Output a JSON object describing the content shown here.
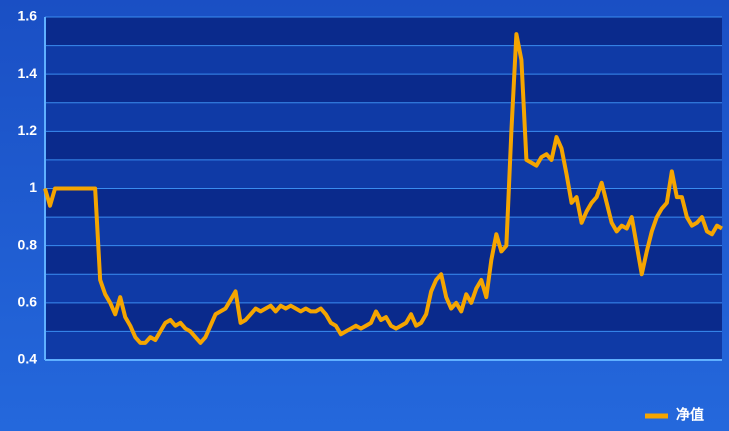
{
  "chart_data": {
    "type": "line",
    "series": [
      {
        "name": "净值",
        "color": "#f5a500",
        "values": [
          1.0,
          0.94,
          1.0,
          1.0,
          1.0,
          1.0,
          1.0,
          1.0,
          1.0,
          1.0,
          1.0,
          0.68,
          0.63,
          0.6,
          0.56,
          0.62,
          0.55,
          0.52,
          0.48,
          0.46,
          0.46,
          0.48,
          0.47,
          0.5,
          0.53,
          0.54,
          0.52,
          0.53,
          0.51,
          0.5,
          0.48,
          0.46,
          0.48,
          0.52,
          0.56,
          0.57,
          0.58,
          0.61,
          0.64,
          0.53,
          0.54,
          0.56,
          0.58,
          0.57,
          0.58,
          0.59,
          0.57,
          0.59,
          0.58,
          0.59,
          0.58,
          0.57,
          0.58,
          0.57,
          0.57,
          0.58,
          0.56,
          0.53,
          0.52,
          0.49,
          0.5,
          0.51,
          0.52,
          0.51,
          0.52,
          0.53,
          0.57,
          0.54,
          0.55,
          0.52,
          0.51,
          0.52,
          0.53,
          0.56,
          0.52,
          0.53,
          0.56,
          0.64,
          0.68,
          0.7,
          0.62,
          0.58,
          0.6,
          0.57,
          0.63,
          0.6,
          0.65,
          0.68,
          0.62,
          0.75,
          0.84,
          0.78,
          0.8,
          1.2,
          1.54,
          1.45,
          1.1,
          1.09,
          1.08,
          1.11,
          1.12,
          1.1,
          1.18,
          1.14,
          1.05,
          0.95,
          0.97,
          0.88,
          0.92,
          0.95,
          0.97,
          1.02,
          0.95,
          0.88,
          0.85,
          0.87,
          0.86,
          0.9,
          0.8,
          0.7,
          0.78,
          0.85,
          0.9,
          0.93,
          0.95,
          1.06,
          0.97,
          0.97,
          0.9,
          0.87,
          0.88,
          0.9,
          0.85,
          0.84,
          0.87,
          0.86
        ]
      }
    ],
    "ylim": [
      0.4,
      1.6
    ],
    "yticks": [
      0.4,
      0.6,
      0.8,
      1,
      1.2,
      1.4,
      1.6
    ],
    "grid": true,
    "legend": "bottom-right"
  }
}
